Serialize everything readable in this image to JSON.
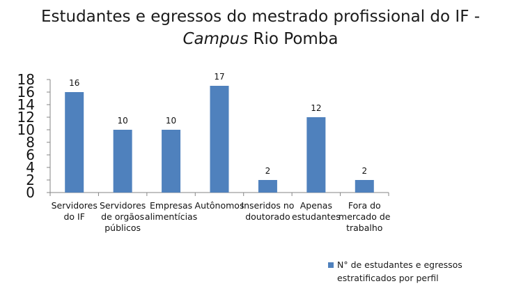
{
  "title": {
    "line1": "Estudantes e egressos do mestrado profissional do IF -",
    "line2_italic": "Campus",
    "line2_rest": " Rio Pomba"
  },
  "chart_data": {
    "type": "bar",
    "title": "Estudantes e egressos do mestrado profissional do IF - Campus Rio Pomba",
    "categories": [
      [
        "Servidores",
        "do IF"
      ],
      [
        "Servidores",
        "de orgãos",
        "públicos"
      ],
      [
        "Empresas",
        "alimentícias"
      ],
      [
        "Autônomos"
      ],
      [
        "Inseridos no",
        "doutorado"
      ],
      [
        "Apenas",
        "estudantes"
      ],
      [
        "Fora do",
        "mercado de",
        "trabalho"
      ]
    ],
    "series": [
      {
        "name": "N° de estudantes e egressos estratificados por perfil",
        "values": [
          16,
          10,
          10,
          17,
          2,
          12,
          2
        ]
      }
    ],
    "data_labels": [
      "16",
      "10",
      "10",
      "17",
      "2",
      "12",
      "2"
    ],
    "yticks": [
      "0",
      "2",
      "4",
      "6",
      "8",
      "10",
      "12",
      "14",
      "16",
      "18"
    ],
    "ylim": [
      0,
      18
    ],
    "bar_color": "#4f81bd",
    "legend_position": "bottom-right",
    "grid": false
  }
}
